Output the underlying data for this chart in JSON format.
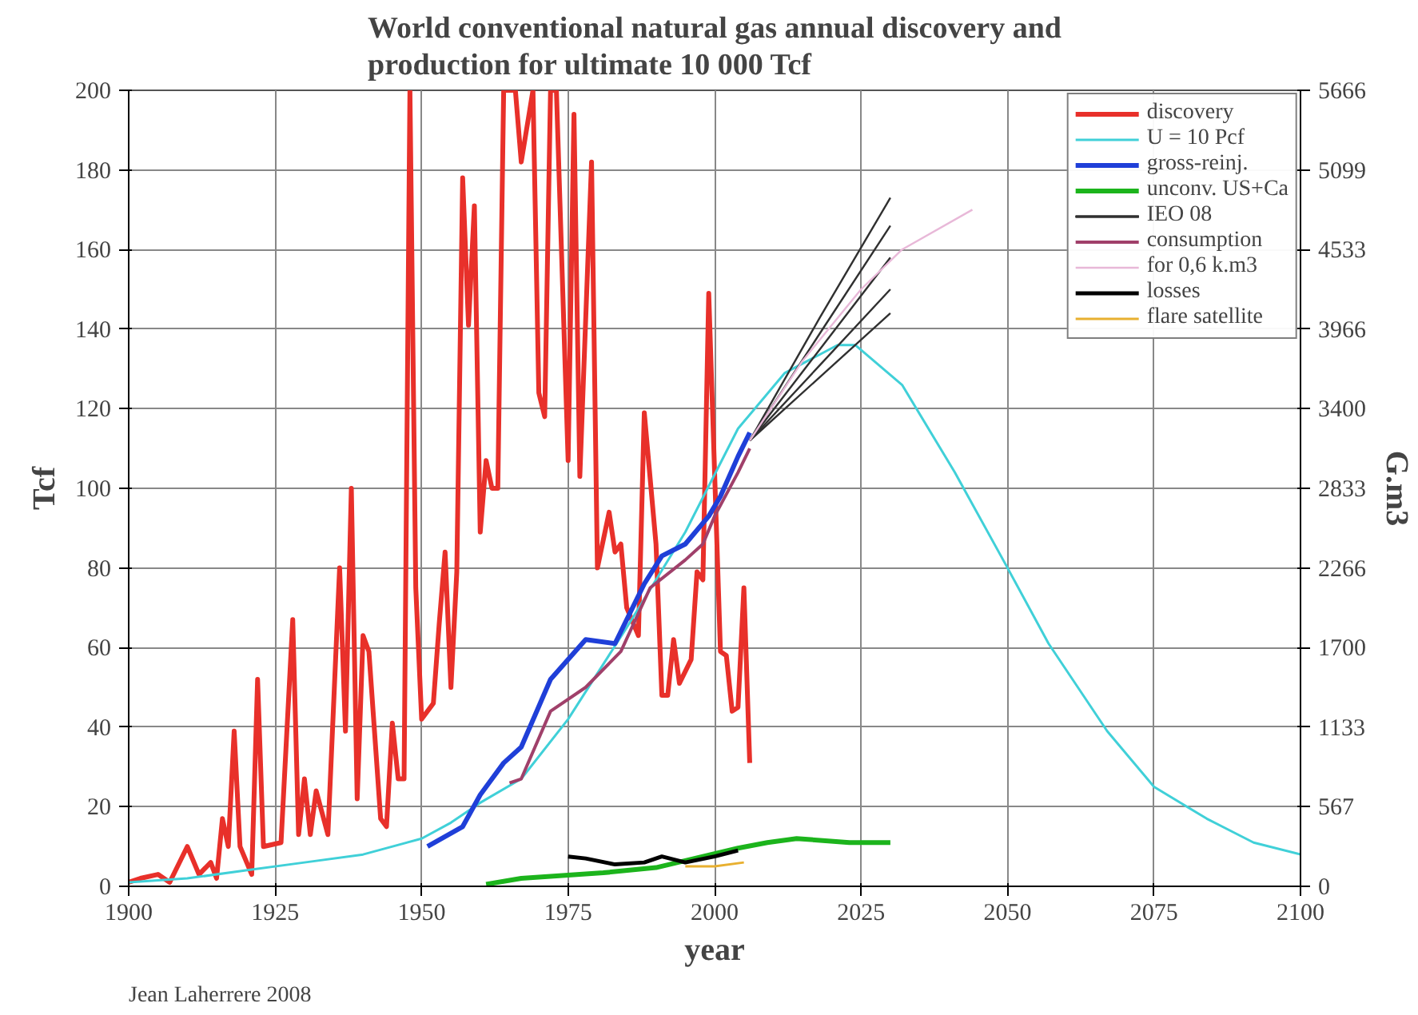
{
  "chart_data": {
    "type": "line",
    "title": "World conventional natural gas annual discovery and\nproduction for ultimate 10 000 Tcf",
    "xlabel": "year",
    "ylabel": "Tcf",
    "y2label": "G.m3",
    "xlim": [
      1900,
      2100
    ],
    "xticks": [
      1900,
      1925,
      1950,
      1975,
      2000,
      2025,
      2050,
      2075,
      2100
    ],
    "ylim": [
      0,
      200
    ],
    "yticks": [
      0,
      20,
      40,
      60,
      80,
      100,
      120,
      140,
      160,
      180,
      200
    ],
    "y2lim": [
      0,
      5666
    ],
    "y2ticks": [
      0,
      567,
      1133,
      1700,
      2266,
      2833,
      3400,
      3966,
      4533,
      5099,
      5666
    ],
    "grid": true,
    "legend": "top right",
    "marker": "none",
    "line_style": "solid",
    "annotations": [
      "Jean Laherrere 2008"
    ],
    "series": [
      {
        "name": "discovery",
        "color": "#e8302a",
        "x": [
          1900,
          1902,
          1905,
          1907,
          1910,
          1912,
          1914,
          1915,
          1916,
          1917,
          1918,
          1919,
          1921,
          1922,
          1923,
          1926,
          1928,
          1929,
          1930,
          1931,
          1932,
          1934,
          1936,
          1937,
          1938,
          1939,
          1940,
          1941,
          1943,
          1944,
          1945,
          1946,
          1947,
          1948,
          1949,
          1950,
          1952,
          1953,
          1954,
          1955,
          1956,
          1957,
          1958,
          1959,
          1960,
          1961,
          1962,
          1963,
          1964,
          1966,
          1967,
          1969,
          1970,
          1971,
          1972,
          1973,
          1975,
          1976,
          1977,
          1979,
          1980,
          1982,
          1983,
          1984,
          1985,
          1987,
          1988,
          1990,
          1991,
          1992,
          1993,
          1994,
          1996,
          1997,
          1998,
          1999,
          2001,
          2002,
          2003,
          2004,
          2005,
          2006
        ],
        "values": [
          1,
          2,
          3,
          1,
          10,
          3,
          6,
          2,
          17,
          10,
          39,
          10,
          3,
          52,
          10,
          11,
          67,
          13,
          27,
          13,
          24,
          13,
          80,
          39,
          100,
          22,
          63,
          59,
          17,
          15,
          41,
          27,
          27,
          200,
          75,
          42,
          46,
          66,
          84,
          50,
          79,
          178,
          141,
          171,
          89,
          107,
          100,
          100,
          200,
          200,
          182,
          200,
          124,
          118,
          200,
          200,
          107,
          194,
          103,
          182,
          80,
          94,
          84,
          86,
          70,
          63,
          119,
          86,
          48,
          48,
          62,
          51,
          57,
          79,
          77,
          149,
          59,
          58,
          44,
          45,
          75,
          31
        ]
      },
      {
        "name": "U = 10 Pcf",
        "color": "#40d0d8",
        "x": [
          1900,
          1910,
          1920,
          1930,
          1940,
          1950,
          1955,
          1960,
          1967,
          1975,
          1985,
          1995,
          2004,
          2012,
          2021,
          2024,
          2032,
          2041,
          2050,
          2057,
          2067,
          2075,
          2084,
          2092,
          2100
        ],
        "values": [
          1,
          2,
          4,
          6,
          8,
          12,
          16,
          21,
          27,
          42,
          65,
          89,
          115,
          129,
          136,
          136,
          126,
          104,
          80,
          61,
          39,
          25,
          17,
          11,
          8
        ]
      },
      {
        "name": "gross-reinj.",
        "color": "#1f3fd8",
        "x": [
          1951,
          1957,
          1960,
          1964,
          1967,
          1972,
          1978,
          1983,
          1988,
          1991,
          1995,
          1999,
          2001,
          2004,
          2006
        ],
        "values": [
          10,
          15,
          23,
          31,
          35,
          52,
          62,
          61,
          76,
          83,
          86,
          93,
          98,
          108,
          114
        ]
      },
      {
        "name": "unconv. US+Ca",
        "color": "#1cb41c",
        "x": [
          1961,
          1967,
          1981,
          1990,
          1998,
          2004,
          2009,
          2014,
          2023,
          2030
        ],
        "values": [
          0.5,
          2,
          3.4,
          4.7,
          7.5,
          9.6,
          11,
          12,
          11,
          11
        ]
      },
      {
        "name": "IEO 08",
        "color": "#303030",
        "x": [
          2006,
          2018,
          2030
        ],
        "values": [
          112,
          143,
          173
        ]
      },
      {
        "color": "#303030",
        "x": [
          2006,
          2018,
          2030
        ],
        "values": [
          112,
          139,
          166
        ]
      },
      {
        "color": "#303030",
        "x": [
          2006,
          2018,
          2030
        ],
        "values": [
          112,
          135,
          158
        ]
      },
      {
        "color": "#303030",
        "x": [
          2006,
          2018,
          2030
        ],
        "values": [
          112,
          131,
          150
        ]
      },
      {
        "color": "#303030",
        "x": [
          2006,
          2018,
          2030
        ],
        "values": [
          112,
          128,
          144
        ]
      },
      {
        "name": "consumption",
        "color": "#a0406a",
        "x": [
          1965,
          1967,
          1972,
          1978,
          1984,
          1989,
          1995,
          1998,
          2000,
          2004,
          2006
        ],
        "values": [
          26,
          27,
          44,
          50,
          59,
          75,
          82,
          86,
          93,
          104,
          110
        ]
      },
      {
        "name": "for 0,6 k.m3",
        "color": "#e8b8d8",
        "x": [
          2006,
          2015,
          2025,
          2032,
          2044
        ],
        "values": [
          112,
          132,
          150,
          160,
          170
        ]
      },
      {
        "name": "losses",
        "color": "#000000",
        "x": [
          1975,
          1978,
          1983,
          1988,
          1991,
          1995,
          2000,
          2004
        ],
        "values": [
          7.5,
          7,
          5.5,
          6,
          7.5,
          6,
          7.5,
          9
        ]
      },
      {
        "name": "flare satellite",
        "color": "#e8b030",
        "x": [
          1995,
          2000,
          2005
        ],
        "values": [
          5,
          5,
          6
        ]
      }
    ]
  }
}
